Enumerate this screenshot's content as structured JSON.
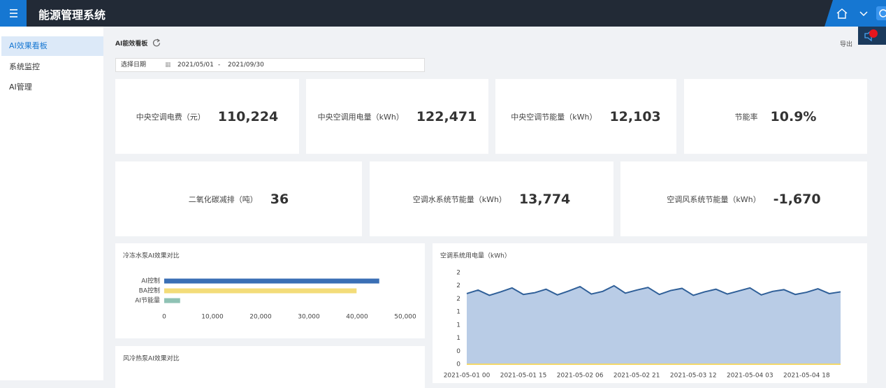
{
  "header": {
    "title": "能源管理系统"
  },
  "sidebar": {
    "items": [
      "AI效果看板",
      "系统监控",
      "AI管理"
    ]
  },
  "toolbar": {
    "title": "AI能效看板",
    "export": "导出",
    "date_label": "选择日期",
    "date_from": "2021/05/01",
    "date_sep": "-",
    "date_to": "2021/09/30"
  },
  "kpis": [
    {
      "label": "中央空调电费（元）",
      "value": "110,224"
    },
    {
      "label": "中央空调用电量（kWh）",
      "value": "122,471"
    },
    {
      "label": "中央空调节能量（kWh）",
      "value": "12,103"
    },
    {
      "label": "节能率",
      "value": "10.9%"
    },
    {
      "label": "二氧化碳减排（吨）",
      "value": "36"
    },
    {
      "label": "空调水系统节能量（kWh）",
      "value": "13,774"
    },
    {
      "label": "空调风系统节能量（kWh）",
      "value": "-1,670"
    }
  ],
  "charts": [
    {
      "type": "bar",
      "title": "冷冻水泵AI效果对比",
      "categories": [
        "AI控制",
        "BA控制",
        "AI节能量"
      ],
      "values": [
        44600,
        39900,
        3300
      ],
      "colors": [
        "#3a6fb5",
        "#f3dc79",
        "#8fc2b4"
      ],
      "xlim": [
        0,
        50000
      ],
      "xticks": [
        0,
        {
          "value": 10000,
          "label": "10,000"
        },
        {
          "value": 20000,
          "label": "20,000"
        },
        {
          "value": 30000,
          "label": "30,000"
        },
        {
          "value": 40000,
          "label": "40,000"
        },
        {
          "value": 50000,
          "label": "50,000"
        }
      ]
    },
    {
      "type": "bar",
      "title": "风冷热泵AI效果对比"
    },
    {
      "type": "area",
      "title": "空调系统用电量（kWh）",
      "x": [
        "2021-05-01 00",
        null,
        null,
        null,
        null,
        "2021-05-01 15",
        null,
        null,
        null,
        null,
        "2021-05-02 06",
        null,
        null,
        null,
        null,
        "2021-05-02 21",
        null,
        null,
        null,
        null,
        "2021-05-03 12",
        null,
        null,
        null,
        null,
        "2021-05-04 03",
        null,
        null,
        null,
        null,
        "2021-05-04 18",
        null,
        null,
        null
      ],
      "series": [
        {
          "color": "#b9cce6",
          "line_color": "#2f5f98",
          "values": [
            1.62,
            1.7,
            1.58,
            1.66,
            1.75,
            1.6,
            1.64,
            1.72,
            1.59,
            1.68,
            1.78,
            1.61,
            1.67,
            1.8,
            1.63,
            1.7,
            1.76,
            1.6,
            1.69,
            1.74,
            1.58,
            1.66,
            1.72,
            1.61,
            1.68,
            1.75,
            1.59,
            1.67,
            1.71,
            1.6,
            1.65,
            1.73,
            1.62,
            1.66
          ]
        },
        {
          "color": "#f3d86a",
          "values": [
            0,
            0,
            0,
            0,
            0,
            0,
            0,
            0,
            0,
            0,
            0,
            0,
            0,
            0,
            0,
            0,
            0,
            0,
            0,
            0,
            0,
            0,
            0,
            0,
            0,
            0,
            0,
            0,
            0,
            0,
            0,
            0,
            0,
            0
          ]
        }
      ],
      "ylim": [
        0,
        2.1
      ],
      "yticks": [
        0,
        {
          "value": 0.3,
          "label": "0"
        },
        {
          "value": 0.6,
          "label": "1"
        },
        {
          "value": 0.9,
          "label": "1"
        },
        {
          "value": 1.2,
          "label": "1"
        },
        {
          "value": 1.5,
          "label": "2"
        },
        {
          "value": 1.8,
          "label": "2"
        },
        {
          "value": 2.1,
          "label": "2"
        }
      ]
    }
  ]
}
